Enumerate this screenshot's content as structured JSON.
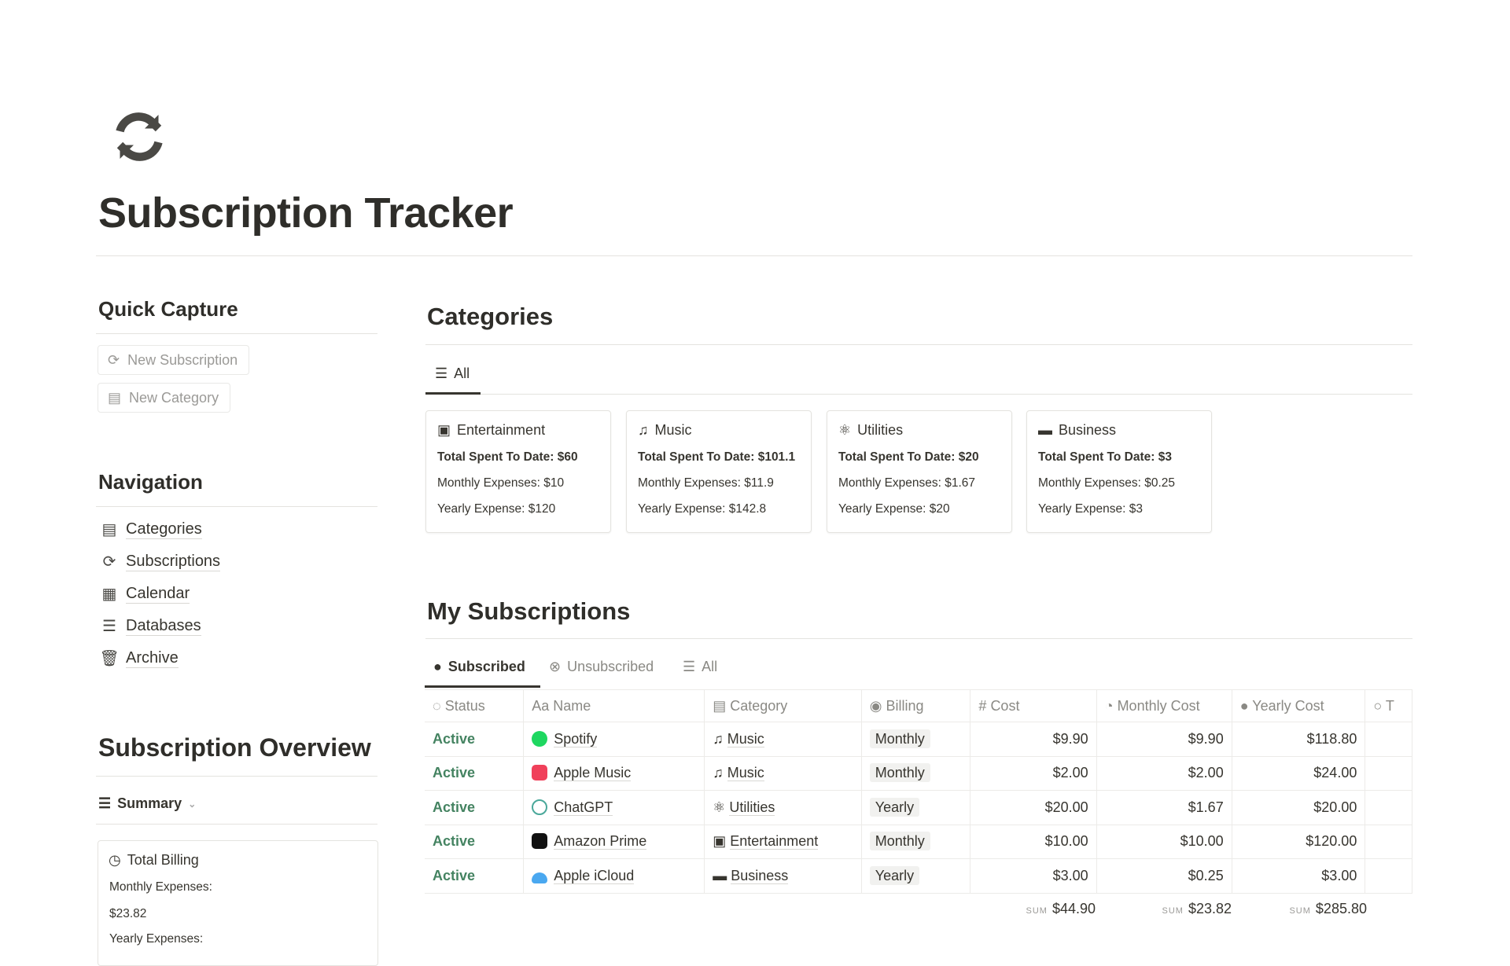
{
  "page": {
    "title": "Subscription Tracker",
    "icon": "refresh-icon"
  },
  "quick_capture": {
    "heading": "Quick Capture",
    "buttons": [
      {
        "label": "New Subscription",
        "icon": "refresh-icon"
      },
      {
        "label": "New Category",
        "icon": "archive-icon"
      }
    ]
  },
  "navigation": {
    "heading": "Navigation",
    "items": [
      {
        "label": "Categories",
        "icon": "archive-icon"
      },
      {
        "label": "Subscriptions",
        "icon": "refresh-icon"
      },
      {
        "label": "Calendar",
        "icon": "calendar-icon"
      },
      {
        "label": "Databases",
        "icon": "database-icon"
      },
      {
        "label": "Archive",
        "icon": "trash-icon"
      }
    ]
  },
  "overview": {
    "heading": "Subscription Overview",
    "view": "Summary",
    "card": {
      "title": "Total Billing",
      "monthly_label": "Monthly Expenses:",
      "monthly_value": "$23.82",
      "yearly_label": "Yearly Expenses:"
    }
  },
  "categories": {
    "heading": "Categories",
    "tab": "All",
    "cards": [
      {
        "name": "Entertainment",
        "icon": "tv-icon",
        "total": "Total Spent To Date: $60",
        "monthly": "Monthly Expenses: $10",
        "yearly": "Yearly Expense: $120"
      },
      {
        "name": "Music",
        "icon": "music-note-icon",
        "total": "Total Spent To Date: $101.1",
        "monthly": "Monthly Expenses: $11.9",
        "yearly": "Yearly Expense: $142.8"
      },
      {
        "name": "Utilities",
        "icon": "atom-icon",
        "total": "Total Spent To Date: $20",
        "monthly": "Monthly Expenses: $1.67",
        "yearly": "Yearly Expense: $20"
      },
      {
        "name": "Business",
        "icon": "briefcase-icon",
        "total": "Total Spent To Date: $3",
        "monthly": "Monthly Expenses: $0.25",
        "yearly": "Yearly Expense: $3"
      }
    ]
  },
  "subscriptions": {
    "heading": "My Subscriptions",
    "tabs": [
      "Subscribed",
      "Unsubscribed",
      "All"
    ],
    "columns": [
      "Status",
      "Name",
      "Category",
      "Billing",
      "Cost",
      "Monthly Cost",
      "Yearly Cost",
      "T"
    ],
    "rows": [
      {
        "status": "Active",
        "name": "Spotify",
        "category": "Music",
        "billing": "Monthly",
        "cost": "$9.90",
        "monthly": "$9.90",
        "yearly": "$118.80"
      },
      {
        "status": "Active",
        "name": "Apple Music",
        "category": "Music",
        "billing": "Monthly",
        "cost": "$2.00",
        "monthly": "$2.00",
        "yearly": "$24.00"
      },
      {
        "status": "Active",
        "name": "ChatGPT",
        "category": "Utilities",
        "billing": "Yearly",
        "cost": "$20.00",
        "monthly": "$1.67",
        "yearly": "$20.00"
      },
      {
        "status": "Active",
        "name": "Amazon Prime",
        "category": "Entertainment",
        "billing": "Monthly",
        "cost": "$10.00",
        "monthly": "$10.00",
        "yearly": "$120.00"
      },
      {
        "status": "Active",
        "name": "Apple iCloud",
        "category": "Business",
        "billing": "Yearly",
        "cost": "$3.00",
        "monthly": "$0.25",
        "yearly": "$3.00"
      }
    ],
    "sum_label": "SUM",
    "sums": {
      "cost": "$44.90",
      "monthly": "$23.82",
      "yearly": "$285.80"
    },
    "colors": {
      "active": "#448361"
    }
  }
}
